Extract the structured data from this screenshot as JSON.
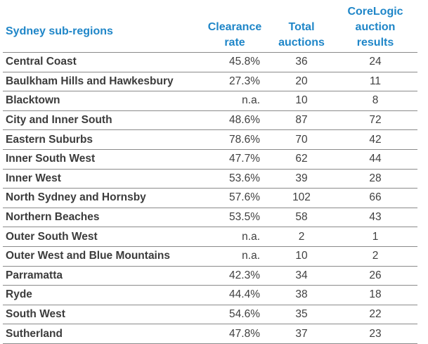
{
  "headers": {
    "region": "Sydney sub-regions",
    "rate_line1": "Clearance",
    "rate_line2": "rate",
    "total_line1": "Total",
    "total_line2": "auctions",
    "core_line1": "CoreLogic",
    "core_line2": "auction",
    "core_line3": "results"
  },
  "colors": {
    "header_text": "#1f86c8",
    "row_text": "#404040",
    "rule": "#8a8a8a"
  },
  "rows": [
    {
      "region": "Central Coast",
      "rate": "45.8%",
      "total": "36",
      "core": "24"
    },
    {
      "region": "Baulkham Hills and Hawkesbury",
      "rate": "27.3%",
      "total": "20",
      "core": "11"
    },
    {
      "region": "Blacktown",
      "rate": "n.a.",
      "total": "10",
      "core": "8"
    },
    {
      "region": "City and Inner South",
      "rate": "48.6%",
      "total": "87",
      "core": "72"
    },
    {
      "region": "Eastern Suburbs",
      "rate": "78.6%",
      "total": "70",
      "core": "42"
    },
    {
      "region": "Inner South West",
      "rate": "47.7%",
      "total": "62",
      "core": "44"
    },
    {
      "region": "Inner West",
      "rate": "53.6%",
      "total": "39",
      "core": "28"
    },
    {
      "region": "North Sydney and Hornsby",
      "rate": "57.6%",
      "total": "102",
      "core": "66"
    },
    {
      "region": "Northern Beaches",
      "rate": "53.5%",
      "total": "58",
      "core": "43"
    },
    {
      "region": "Outer South West",
      "rate": "n.a.",
      "total": "2",
      "core": "1"
    },
    {
      "region": "Outer West and Blue Mountains",
      "rate": "n.a.",
      "total": "10",
      "core": "2"
    },
    {
      "region": "Parramatta",
      "rate": "42.3%",
      "total": "34",
      "core": "26"
    },
    {
      "region": "Ryde",
      "rate": "44.4%",
      "total": "38",
      "core": "18"
    },
    {
      "region": "South West",
      "rate": "54.6%",
      "total": "35",
      "core": "22"
    },
    {
      "region": "Sutherland",
      "rate": "47.8%",
      "total": "37",
      "core": "23"
    }
  ]
}
